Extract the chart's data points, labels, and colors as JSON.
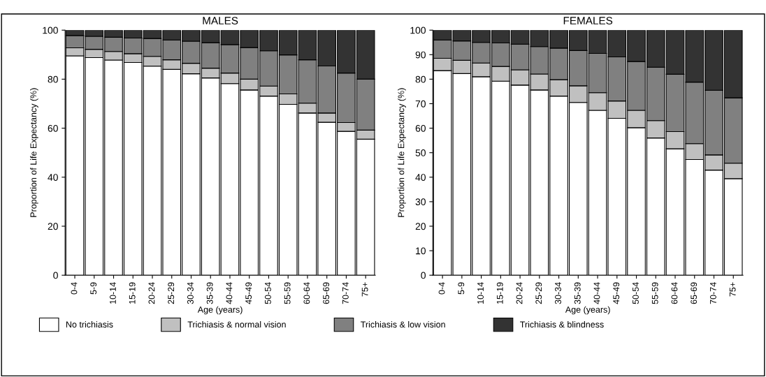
{
  "chart_data": [
    {
      "type": "bar",
      "stacked": true,
      "title": "MALES",
      "xlabel": "Age (years)",
      "ylabel": "Proportion of Life Expectancy (%)",
      "legend": "bottom",
      "grid": false,
      "categories": [
        "0-4",
        "5-9",
        "10-14",
        "15-19",
        "20-24",
        "25-29",
        "30-34",
        "35-39",
        "40-44",
        "45-49",
        "50-54",
        "55-59",
        "60-64",
        "65-69",
        "70-74",
        "75+"
      ],
      "ylim": [
        0,
        100
      ],
      "yticks": [
        0,
        20,
        40,
        60,
        80,
        100
      ],
      "series": [
        {
          "name": "No trichiasis",
          "color": "#ffffff",
          "values": [
            89.5,
            88.8,
            87.8,
            86.8,
            85.3,
            84.0,
            82.2,
            80.5,
            78.2,
            75.6,
            73.1,
            69.7,
            66.2,
            62.4,
            58.7,
            55.5
          ]
        },
        {
          "name": "Trichiasis & normal vision",
          "color": "#c0c0c0",
          "values": [
            3.3,
            3.4,
            3.5,
            3.6,
            4.0,
            3.9,
            4.3,
            4.0,
            4.3,
            4.4,
            4.1,
            4.3,
            4.0,
            3.8,
            3.6,
            3.7
          ]
        },
        {
          "name": "Trichiasis & low vision",
          "color": "#808080",
          "values": [
            5.0,
            5.3,
            5.8,
            6.4,
            7.3,
            8.1,
            9.0,
            10.4,
            11.6,
            12.9,
            14.4,
            15.9,
            17.7,
            19.2,
            20.2,
            20.8
          ]
        },
        {
          "name": "Trichiasis & blindness",
          "color": "#333333",
          "values": [
            2.2,
            2.5,
            2.9,
            3.2,
            3.4,
            4.0,
            4.5,
            5.1,
            5.9,
            7.1,
            8.4,
            10.1,
            12.1,
            14.6,
            17.5,
            20.0
          ]
        }
      ]
    },
    {
      "type": "bar",
      "stacked": true,
      "title": "FEMALES",
      "xlabel": "Age (years)",
      "ylabel": "Proportion of Life Expectancy (%)",
      "grid": false,
      "categories": [
        "0-4",
        "5-9",
        "10-14",
        "15-19",
        "20-24",
        "25-29",
        "30-34",
        "35-39",
        "40-44",
        "45-49",
        "50-54",
        "55-59",
        "60-64",
        "65-69",
        "70-74",
        "75+"
      ],
      "ylim": [
        0,
        100
      ],
      "yticks": [
        0,
        10,
        20,
        30,
        40,
        50,
        60,
        70,
        80,
        90,
        100
      ],
      "series": [
        {
          "color": "#ffffff",
          "values": [
            83.5,
            82.3,
            81.0,
            79.2,
            77.6,
            75.6,
            73.1,
            70.5,
            67.3,
            64.0,
            60.2,
            56.0,
            51.6,
            47.2,
            42.9,
            39.4
          ]
        },
        {
          "color": "#c0c0c0",
          "values": [
            5.0,
            5.4,
            5.6,
            6.0,
            6.2,
            6.5,
            6.7,
            6.8,
            7.2,
            7.1,
            7.1,
            7.1,
            7.0,
            6.5,
            6.2,
            6.3
          ]
        },
        {
          "color": "#808080",
          "values": [
            7.5,
            7.9,
            8.4,
            9.6,
            10.5,
            11.2,
            12.9,
            14.4,
            16.0,
            18.0,
            19.9,
            21.8,
            23.4,
            25.1,
            26.4,
            26.7
          ]
        },
        {
          "color": "#333333",
          "values": [
            4.0,
            4.4,
            5.0,
            5.2,
            5.7,
            6.7,
            7.3,
            8.3,
            9.5,
            10.9,
            12.8,
            15.1,
            18.0,
            21.2,
            24.5,
            27.6
          ]
        }
      ]
    }
  ]
}
